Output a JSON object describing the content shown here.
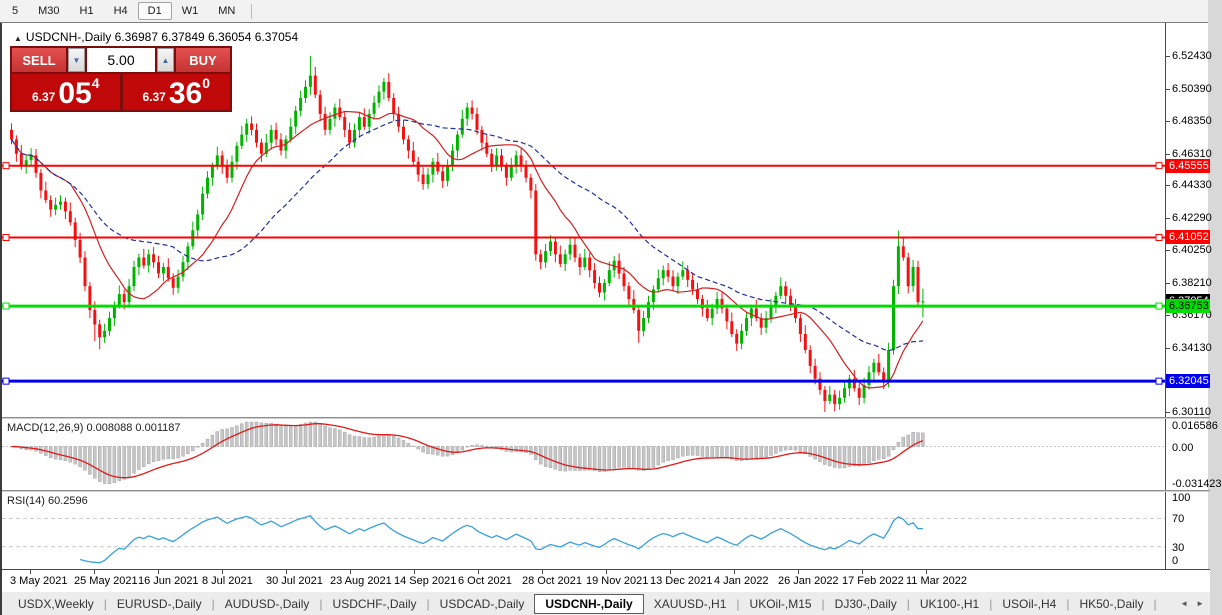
{
  "toolbar": {
    "timeframes": [
      "5",
      "M30",
      "H1",
      "H4",
      "D1",
      "W1",
      "MN"
    ],
    "active": "D1"
  },
  "chart": {
    "symbol_title": "USDCNH-,Daily",
    "ohlc_text": "6.36987 6.37849 6.36054 6.37054"
  },
  "icons": {
    "collapse_triangle": "▲",
    "spin_down": "▼",
    "spin_up": "▲",
    "tab_left": "◄",
    "tab_right": "►",
    "tab_separator": "|"
  },
  "trade_panel": {
    "sell_label": "SELL",
    "buy_label": "BUY",
    "volume": "5.00",
    "sell_small": "6.37",
    "sell_big": "05",
    "sell_sup": "4",
    "buy_small": "6.37",
    "buy_big": "36",
    "buy_sup": "0"
  },
  "macd_panel": {
    "label": "MACD(12,26,9) 0.008088 0.001187"
  },
  "rsi_panel": {
    "label": "RSI(14) 60.2596"
  },
  "colors": {
    "up_candle": "#00b400",
    "down_candle": "#f21212",
    "ma_fast": "#cf2020",
    "ma_slow": "#1f2f9e",
    "macd_hist_fill": "#c6c6c6",
    "macd_hist_stroke": "#9a9a9a",
    "macd_signal": "#e01818",
    "rsi_line": "#3aa0dc",
    "guide_dash": "#c9c9c9"
  },
  "chart_data": {
    "type": "candlestick",
    "title": "USDCNH-,Daily",
    "timeframe": "Daily",
    "ylim": [
      6.2986,
      6.545
    ],
    "first_open": 6.478,
    "closes": [
      6.472,
      6.463,
      6.455,
      6.459,
      6.462,
      6.451,
      6.44,
      6.434,
      6.428,
      6.431,
      6.433,
      6.427,
      6.42,
      6.409,
      6.398,
      6.38,
      6.365,
      6.356,
      6.348,
      6.352,
      6.36,
      6.368,
      6.375,
      6.37,
      6.38,
      6.392,
      6.398,
      6.393,
      6.4,
      6.395,
      6.388,
      6.392,
      6.385,
      6.379,
      6.386,
      6.395,
      6.405,
      6.415,
      6.425,
      6.438,
      6.448,
      6.455,
      6.462,
      6.455,
      6.448,
      6.458,
      6.468,
      6.475,
      6.482,
      6.478,
      6.47,
      6.463,
      6.47,
      6.478,
      6.472,
      6.465,
      6.472,
      6.48,
      6.49,
      6.498,
      6.505,
      6.512,
      6.5,
      6.488,
      6.478,
      6.485,
      6.492,
      6.486,
      6.478,
      6.47,
      6.478,
      6.486,
      6.48,
      6.488,
      6.495,
      6.502,
      6.508,
      6.498,
      6.488,
      6.48,
      6.472,
      6.465,
      6.458,
      6.45,
      6.444,
      6.45,
      6.458,
      6.452,
      6.446,
      6.455,
      6.465,
      6.475,
      6.485,
      6.492,
      6.488,
      6.478,
      6.47,
      6.463,
      6.456,
      6.462,
      6.455,
      6.448,
      6.455,
      6.462,
      6.455,
      6.448,
      6.44,
      6.4,
      6.395,
      6.402,
      6.408,
      6.4,
      6.394,
      6.4,
      6.406,
      6.398,
      6.392,
      6.398,
      6.39,
      6.382,
      6.376,
      6.382,
      6.39,
      6.396,
      6.388,
      6.38,
      6.372,
      6.365,
      6.352,
      6.36,
      6.37,
      6.378,
      6.385,
      6.39,
      6.386,
      6.38,
      6.386,
      6.39,
      6.384,
      6.378,
      6.372,
      6.366,
      6.36,
      6.366,
      6.372,
      6.366,
      6.358,
      6.35,
      6.344,
      6.352,
      6.36,
      6.366,
      6.36,
      6.354,
      6.36,
      6.368,
      6.374,
      6.38,
      6.374,
      6.368,
      6.36,
      6.35,
      6.34,
      6.33,
      6.322,
      6.315,
      6.308,
      6.312,
      6.306,
      6.31,
      6.316,
      6.322,
      6.316,
      6.31,
      6.318,
      6.326,
      6.332,
      6.326,
      6.32,
      6.34,
      6.38,
      6.405,
      6.398,
      6.38,
      6.392,
      6.37,
      6.37054
    ],
    "wick_up": [
      0.004,
      0.0025,
      0.0055,
      0.003,
      0.0045
    ],
    "wick_dn": [
      0.003,
      0.005,
      0.002,
      0.0045,
      0.0035
    ],
    "overrides": {
      "17": {
        "l": 6.3455
      },
      "18": {
        "l": 6.3405
      },
      "61": {
        "h": 6.5243
      },
      "107": {
        "h": 6.444,
        "l": 6.396
      },
      "128": {
        "l": 6.3445
      },
      "166": {
        "l": 6.3011
      },
      "168": {
        "l": 6.3015
      },
      "181": {
        "h": 6.4149
      },
      "186": {
        "o": 6.36987,
        "h": 6.37849,
        "l": 6.36054,
        "c": 6.37054
      }
    },
    "moving_averages": [
      {
        "period": 13,
        "color": "#cf2020",
        "style": "solid"
      },
      {
        "period": 34,
        "color": "#1f2f9e",
        "style": "dashed"
      }
    ],
    "y_axis_labels": [
      "6.52430",
      "6.50390",
      "6.48350",
      "6.46310",
      "6.44330",
      "6.42290",
      "6.40250",
      "6.38210",
      "6.36170",
      "6.34130",
      "6.30110"
    ],
    "levels": [
      {
        "price": 6.45555,
        "label": "6.45555",
        "color": "#ff0000",
        "thickness": 2,
        "text_color": "#ffffff"
      },
      {
        "price": 6.41052,
        "label": "6.41052",
        "color": "#ff0000",
        "thickness": 2,
        "text_color": "#ffffff"
      },
      {
        "price": 6.37054,
        "label": "6.37054",
        "color": "#000000",
        "thickness": 0,
        "text_color": "#ffffff"
      },
      {
        "price": 6.36753,
        "label": "6.36753",
        "color": "#00dd00",
        "thickness": 3,
        "text_color": "#000000"
      },
      {
        "price": 6.32045,
        "label": "6.32045",
        "color": "#0000ee",
        "thickness": 3,
        "text_color": "#ffffff"
      }
    ],
    "date_labels": [
      "3 May 2021",
      "25 May 2021",
      "16 Jun 2021",
      "8 Jul 2021",
      "30 Jul 2021",
      "23 Aug 2021",
      "14 Sep 2021",
      "6 Oct 2021",
      "28 Oct 2021",
      "19 Nov 2021",
      "13 Dec 2021",
      "4 Jan 2022",
      "26 Jan 2022",
      "17 Feb 2022",
      "11 Mar 2022"
    ],
    "macd": {
      "params": [
        12,
        26,
        9
      ],
      "current_values": "0.008088 0.001187",
      "axis_values": [
        0.016586,
        0.0,
        -0.031423
      ],
      "axis_texts": [
        "0.016586",
        "0.00",
        "-0.031423"
      ]
    },
    "rsi": {
      "period": 14,
      "current_value": "60.2596",
      "axis_values": [
        100,
        70,
        30,
        0
      ],
      "guides": [
        70,
        30
      ]
    }
  },
  "tabs": {
    "items": [
      "USDX,Weekly",
      "EURUSD-,Daily",
      "AUDUSD-,Daily",
      "USDCHF-,Daily",
      "USDCAD-,Daily",
      "USDCNH-,Daily",
      "XAUUSD-,H1",
      "UKOil-,M15",
      "DJ30-,Daily",
      "UK100-,H1",
      "USOil-,H4",
      "HK50-,Daily"
    ],
    "active": "USDCNH-,Daily"
  }
}
